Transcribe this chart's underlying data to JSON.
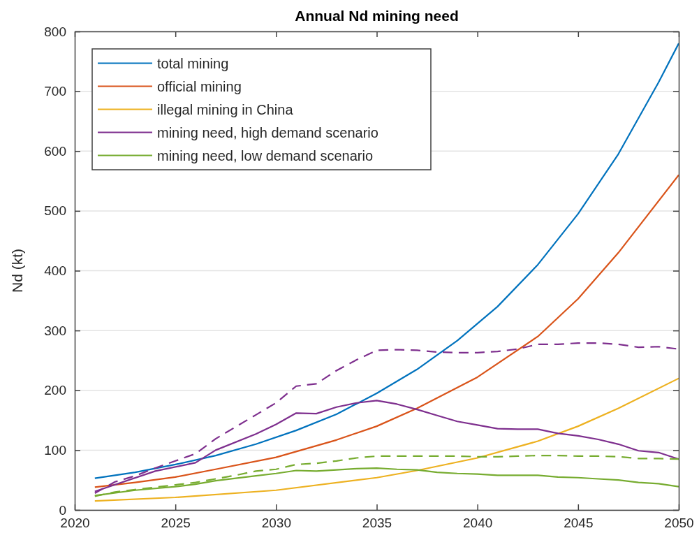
{
  "chart_data": {
    "type": "line",
    "title": "Annual Nd mining need",
    "ylabel": "Nd (kt)",
    "xlim": [
      2020,
      2050
    ],
    "xticks": [
      2020,
      2025,
      2030,
      2035,
      2040,
      2045,
      2050
    ],
    "ylim": [
      0,
      800
    ],
    "yticks": [
      0,
      100,
      200,
      300,
      400,
      500,
      600,
      700,
      800
    ],
    "grid": "y",
    "legend": "top left",
    "line_style": "solid",
    "marker": "none",
    "series": [
      {
        "name": "total mining",
        "color": "#0072bd",
        "x": [
          2021,
          2023,
          2025,
          2027,
          2029,
          2031,
          2033,
          2035,
          2037,
          2039,
          2041,
          2043,
          2045,
          2047,
          2049,
          2050
        ],
        "values": [
          53,
          63,
          76,
          91,
          110,
          133,
          160,
          195,
          235,
          283,
          340,
          410,
          495,
          595,
          715,
          780
        ]
      },
      {
        "name": "official mining",
        "color": "#d95319",
        "x": [
          2021,
          2023,
          2025,
          2027,
          2030,
          2033,
          2035,
          2037,
          2040,
          2043,
          2045,
          2047,
          2050
        ],
        "values": [
          38,
          46,
          55,
          68,
          88,
          117,
          140,
          170,
          222,
          290,
          353,
          430,
          560
        ]
      },
      {
        "name": "illegal mining in China",
        "color": "#edb120",
        "x": [
          2021,
          2025,
          2030,
          2035,
          2037,
          2040,
          2043,
          2045,
          2047,
          2050
        ],
        "values": [
          15,
          21,
          33,
          54,
          66,
          87,
          115,
          140,
          170,
          220
        ]
      },
      {
        "name": "mining need, high demand scenario",
        "color": "#7e2f8e",
        "x": [
          2021,
          2024,
          2026,
          2027,
          2029,
          2030,
          2031,
          2032,
          2033,
          2034,
          2035,
          2036,
          2037,
          2038,
          2039,
          2040,
          2041,
          2042,
          2043,
          2044,
          2045,
          2046,
          2047,
          2048,
          2049,
          2050
        ],
        "values": [
          31,
          65,
          79,
          100,
          127,
          143,
          162,
          161,
          172,
          179,
          183,
          177,
          168,
          158,
          148,
          142,
          136,
          135,
          135,
          128,
          124,
          118,
          110,
          99,
          96,
          85
        ]
      },
      {
        "name": "mining need, low demand scenario",
        "color": "#77ac30",
        "x": [
          2021,
          2023,
          2025,
          2026,
          2027,
          2029,
          2030,
          2031,
          2032,
          2033,
          2034,
          2035,
          2036,
          2037,
          2038,
          2039,
          2040,
          2041,
          2042,
          2043,
          2044,
          2045,
          2046,
          2047,
          2048,
          2049,
          2050
        ],
        "values": [
          24,
          33,
          39,
          43,
          49,
          57,
          61,
          66,
          65,
          67,
          69,
          70,
          68,
          67,
          63,
          61,
          60,
          58,
          58,
          58,
          55,
          54,
          52,
          50,
          46,
          44,
          39
        ]
      },
      {
        "color": "#7e2f8e",
        "line_style": "dashed",
        "x": [
          2021,
          2022,
          2023,
          2024,
          2025,
          2026,
          2027,
          2028,
          2029,
          2030,
          2031,
          2032,
          2033,
          2034,
          2035,
          2036,
          2037,
          2038,
          2039,
          2040,
          2041,
          2042,
          2043,
          2044,
          2045,
          2046,
          2047,
          2048,
          2049,
          2050
        ],
        "values": [
          28,
          47,
          57,
          70,
          82,
          94,
          119,
          139,
          159,
          179,
          207,
          211,
          233,
          251,
          267,
          268,
          267,
          264,
          263,
          263,
          265,
          269,
          277,
          277,
          279,
          279,
          277,
          272,
          273,
          269
        ]
      },
      {
        "color": "#77ac30",
        "line_style": "dashed",
        "x": [
          2021,
          2022,
          2023,
          2024,
          2025,
          2026,
          2027,
          2028,
          2029,
          2030,
          2031,
          2032,
          2033,
          2034,
          2035,
          2036,
          2037,
          2038,
          2039,
          2040,
          2041,
          2042,
          2043,
          2044,
          2045,
          2046,
          2047,
          2048,
          2049,
          2050
        ],
        "values": [
          23,
          30,
          34,
          38,
          42,
          46,
          52,
          58,
          65,
          68,
          76,
          78,
          82,
          87,
          90,
          90,
          90,
          90,
          90,
          89,
          89,
          90,
          91,
          91,
          90,
          90,
          89,
          86,
          86,
          85
        ]
      }
    ]
  }
}
